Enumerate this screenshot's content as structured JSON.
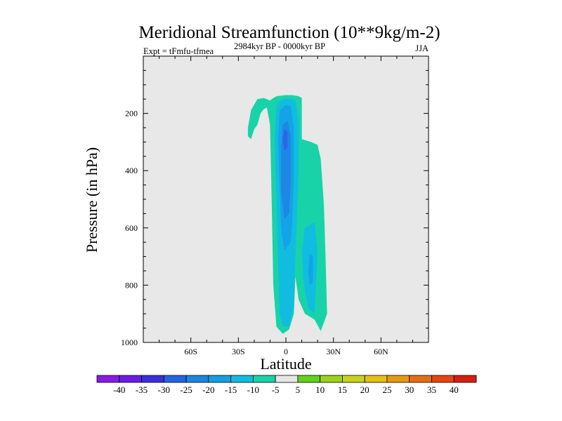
{
  "chart_data": {
    "type": "contour",
    "title": "Meridional Streamfunction (10**9kg/m-2)",
    "subtitle_left": "Expt = tFmfu-tfmea",
    "subtitle_center": "2984kyr BP - 0000kyr BP",
    "subtitle_right": "JJA",
    "xlabel": "Latitude",
    "ylabel": "Pressure (in hPa)",
    "xlim": [
      -90,
      90
    ],
    "ylim": [
      1000,
      0
    ],
    "x_ticks": [
      {
        "value": -60,
        "label": "60S"
      },
      {
        "value": -30,
        "label": "30S"
      },
      {
        "value": 0,
        "label": "0"
      },
      {
        "value": 30,
        "label": "30N"
      },
      {
        "value": 60,
        "label": "60N"
      }
    ],
    "y_ticks": [
      {
        "value": 200,
        "label": "200"
      },
      {
        "value": 400,
        "label": "400"
      },
      {
        "value": 600,
        "label": "600"
      },
      {
        "value": 800,
        "label": "800"
      },
      {
        "value": 1000,
        "label": "1000"
      }
    ],
    "background_color": "#e8e8e8",
    "contour_regions": [
      {
        "level": -5,
        "color": "#18d3a8",
        "points": [
          [
            -22,
            188
          ],
          [
            -18,
            150
          ],
          [
            -14,
            146
          ],
          [
            -10,
            155
          ],
          [
            -9,
            150
          ],
          [
            -6,
            140
          ],
          [
            0,
            136
          ],
          [
            4,
            136
          ],
          [
            8,
            140
          ],
          [
            10,
            146
          ],
          [
            10,
            290
          ],
          [
            16,
            300
          ],
          [
            20,
            310
          ],
          [
            22,
            360
          ],
          [
            24,
            520
          ],
          [
            25,
            700
          ],
          [
            26,
            900
          ],
          [
            22,
            960
          ],
          [
            18,
            920
          ],
          [
            12,
            900
          ],
          [
            8,
            850
          ],
          [
            6,
            770
          ],
          [
            5,
            900
          ],
          [
            2,
            955
          ],
          [
            -2,
            970
          ],
          [
            -6,
            945
          ],
          [
            -8,
            800
          ],
          [
            -9,
            500
          ],
          [
            -10,
            240
          ],
          [
            -12,
            180
          ],
          [
            -14,
            185
          ],
          [
            -16,
            200
          ],
          [
            -18,
            240
          ],
          [
            -20,
            255
          ],
          [
            -22,
            290
          ],
          [
            -24,
            280
          ],
          [
            -24,
            250
          ]
        ]
      },
      {
        "level": -10,
        "color": "#10bde0",
        "points": [
          [
            -6,
            170
          ],
          [
            -2,
            150
          ],
          [
            2,
            148
          ],
          [
            6,
            155
          ],
          [
            8,
            220
          ],
          [
            8,
            400
          ],
          [
            7,
            560
          ],
          [
            6,
            700
          ],
          [
            5,
            880
          ],
          [
            2,
            945
          ],
          [
            -2,
            945
          ],
          [
            -4,
            900
          ],
          [
            -5,
            700
          ],
          [
            -6,
            500
          ],
          [
            -7,
            300
          ]
        ]
      },
      {
        "level": -15,
        "color": "#14a3e6",
        "points": [
          [
            -4,
            190
          ],
          [
            0,
            170
          ],
          [
            3,
            175
          ],
          [
            5,
            250
          ],
          [
            5,
            420
          ],
          [
            4,
            580
          ],
          [
            3,
            650
          ],
          [
            -1,
            680
          ],
          [
            -3,
            600
          ],
          [
            -4,
            450
          ],
          [
            -5,
            300
          ]
        ]
      },
      {
        "level": -20,
        "color": "#1e87e6",
        "points": [
          [
            -2,
            240
          ],
          [
            1,
            225
          ],
          [
            3,
            280
          ],
          [
            3,
            450
          ],
          [
            2,
            550
          ],
          [
            -1,
            570
          ],
          [
            -3,
            470
          ],
          [
            -3,
            320
          ]
        ]
      },
      {
        "level": -25,
        "color": "#2a66e8",
        "points": [
          [
            -1,
            255
          ],
          [
            1,
            265
          ],
          [
            1,
            320
          ],
          [
            -1,
            330
          ],
          [
            -2,
            290
          ]
        ]
      },
      {
        "level": -10,
        "color": "#10bde0",
        "points": [
          [
            12,
            600
          ],
          [
            18,
            580
          ],
          [
            20,
            680
          ],
          [
            19,
            800
          ],
          [
            18,
            900
          ],
          [
            14,
            880
          ],
          [
            11,
            780
          ],
          [
            10,
            680
          ]
        ]
      },
      {
        "level": -15,
        "color": "#14a3e6",
        "points": [
          [
            15,
            690
          ],
          [
            17,
            700
          ],
          [
            17,
            790
          ],
          [
            15,
            800
          ],
          [
            14,
            750
          ]
        ]
      }
    ],
    "colorbar": {
      "labels": [
        "-40",
        "-35",
        "-30",
        "-25",
        "-20",
        "-15",
        "-10",
        "-5",
        "5",
        "10",
        "15",
        "20",
        "25",
        "30",
        "35",
        "40"
      ],
      "colors": [
        "#8a19e6",
        "#6a1ce6",
        "#3a2fdc",
        "#2066e2",
        "#1b86e3",
        "#12a0e3",
        "#10bde0",
        "#18d3a8",
        "#e6e6e6",
        "#5fd21a",
        "#9bd21a",
        "#c8d418",
        "#e6c012",
        "#e69a12",
        "#e66e12",
        "#e64512",
        "#d81e10"
      ]
    }
  }
}
